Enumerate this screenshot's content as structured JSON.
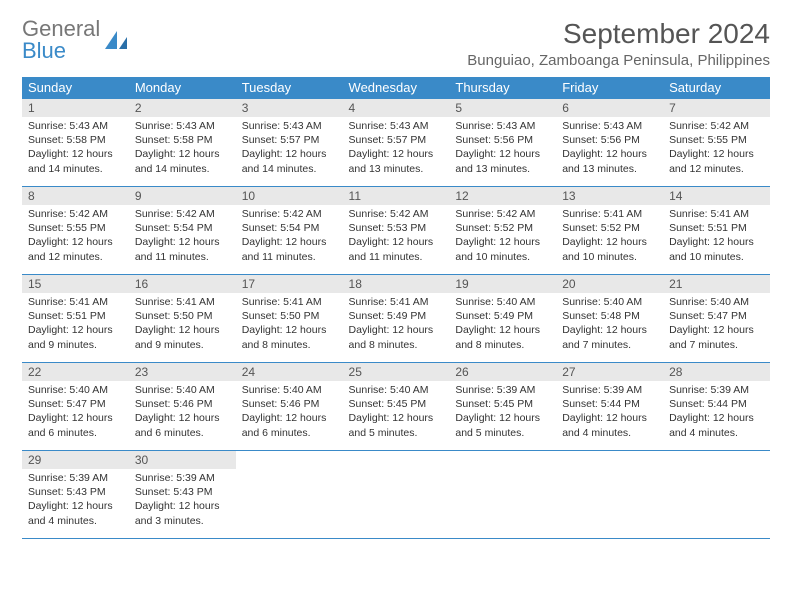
{
  "logo": {
    "word1": "General",
    "word2": "Blue"
  },
  "title": "September 2024",
  "subtitle": "Bunguiao, Zamboanga Peninsula, Philippines",
  "weekdays": [
    "Sunday",
    "Monday",
    "Tuesday",
    "Wednesday",
    "Thursday",
    "Friday",
    "Saturday"
  ],
  "header_bg": "#3a8ac8",
  "daynum_bg": "#e8e8e8",
  "border_color": "#3a8ac8",
  "days": [
    {
      "n": "1",
      "sr": "Sunrise: 5:43 AM",
      "ss": "Sunset: 5:58 PM",
      "d1": "Daylight: 12 hours",
      "d2": "and 14 minutes."
    },
    {
      "n": "2",
      "sr": "Sunrise: 5:43 AM",
      "ss": "Sunset: 5:58 PM",
      "d1": "Daylight: 12 hours",
      "d2": "and 14 minutes."
    },
    {
      "n": "3",
      "sr": "Sunrise: 5:43 AM",
      "ss": "Sunset: 5:57 PM",
      "d1": "Daylight: 12 hours",
      "d2": "and 14 minutes."
    },
    {
      "n": "4",
      "sr": "Sunrise: 5:43 AM",
      "ss": "Sunset: 5:57 PM",
      "d1": "Daylight: 12 hours",
      "d2": "and 13 minutes."
    },
    {
      "n": "5",
      "sr": "Sunrise: 5:43 AM",
      "ss": "Sunset: 5:56 PM",
      "d1": "Daylight: 12 hours",
      "d2": "and 13 minutes."
    },
    {
      "n": "6",
      "sr": "Sunrise: 5:43 AM",
      "ss": "Sunset: 5:56 PM",
      "d1": "Daylight: 12 hours",
      "d2": "and 13 minutes."
    },
    {
      "n": "7",
      "sr": "Sunrise: 5:42 AM",
      "ss": "Sunset: 5:55 PM",
      "d1": "Daylight: 12 hours",
      "d2": "and 12 minutes."
    },
    {
      "n": "8",
      "sr": "Sunrise: 5:42 AM",
      "ss": "Sunset: 5:55 PM",
      "d1": "Daylight: 12 hours",
      "d2": "and 12 minutes."
    },
    {
      "n": "9",
      "sr": "Sunrise: 5:42 AM",
      "ss": "Sunset: 5:54 PM",
      "d1": "Daylight: 12 hours",
      "d2": "and 11 minutes."
    },
    {
      "n": "10",
      "sr": "Sunrise: 5:42 AM",
      "ss": "Sunset: 5:54 PM",
      "d1": "Daylight: 12 hours",
      "d2": "and 11 minutes."
    },
    {
      "n": "11",
      "sr": "Sunrise: 5:42 AM",
      "ss": "Sunset: 5:53 PM",
      "d1": "Daylight: 12 hours",
      "d2": "and 11 minutes."
    },
    {
      "n": "12",
      "sr": "Sunrise: 5:42 AM",
      "ss": "Sunset: 5:52 PM",
      "d1": "Daylight: 12 hours",
      "d2": "and 10 minutes."
    },
    {
      "n": "13",
      "sr": "Sunrise: 5:41 AM",
      "ss": "Sunset: 5:52 PM",
      "d1": "Daylight: 12 hours",
      "d2": "and 10 minutes."
    },
    {
      "n": "14",
      "sr": "Sunrise: 5:41 AM",
      "ss": "Sunset: 5:51 PM",
      "d1": "Daylight: 12 hours",
      "d2": "and 10 minutes."
    },
    {
      "n": "15",
      "sr": "Sunrise: 5:41 AM",
      "ss": "Sunset: 5:51 PM",
      "d1": "Daylight: 12 hours",
      "d2": "and 9 minutes."
    },
    {
      "n": "16",
      "sr": "Sunrise: 5:41 AM",
      "ss": "Sunset: 5:50 PM",
      "d1": "Daylight: 12 hours",
      "d2": "and 9 minutes."
    },
    {
      "n": "17",
      "sr": "Sunrise: 5:41 AM",
      "ss": "Sunset: 5:50 PM",
      "d1": "Daylight: 12 hours",
      "d2": "and 8 minutes."
    },
    {
      "n": "18",
      "sr": "Sunrise: 5:41 AM",
      "ss": "Sunset: 5:49 PM",
      "d1": "Daylight: 12 hours",
      "d2": "and 8 minutes."
    },
    {
      "n": "19",
      "sr": "Sunrise: 5:40 AM",
      "ss": "Sunset: 5:49 PM",
      "d1": "Daylight: 12 hours",
      "d2": "and 8 minutes."
    },
    {
      "n": "20",
      "sr": "Sunrise: 5:40 AM",
      "ss": "Sunset: 5:48 PM",
      "d1": "Daylight: 12 hours",
      "d2": "and 7 minutes."
    },
    {
      "n": "21",
      "sr": "Sunrise: 5:40 AM",
      "ss": "Sunset: 5:47 PM",
      "d1": "Daylight: 12 hours",
      "d2": "and 7 minutes."
    },
    {
      "n": "22",
      "sr": "Sunrise: 5:40 AM",
      "ss": "Sunset: 5:47 PM",
      "d1": "Daylight: 12 hours",
      "d2": "and 6 minutes."
    },
    {
      "n": "23",
      "sr": "Sunrise: 5:40 AM",
      "ss": "Sunset: 5:46 PM",
      "d1": "Daylight: 12 hours",
      "d2": "and 6 minutes."
    },
    {
      "n": "24",
      "sr": "Sunrise: 5:40 AM",
      "ss": "Sunset: 5:46 PM",
      "d1": "Daylight: 12 hours",
      "d2": "and 6 minutes."
    },
    {
      "n": "25",
      "sr": "Sunrise: 5:40 AM",
      "ss": "Sunset: 5:45 PM",
      "d1": "Daylight: 12 hours",
      "d2": "and 5 minutes."
    },
    {
      "n": "26",
      "sr": "Sunrise: 5:39 AM",
      "ss": "Sunset: 5:45 PM",
      "d1": "Daylight: 12 hours",
      "d2": "and 5 minutes."
    },
    {
      "n": "27",
      "sr": "Sunrise: 5:39 AM",
      "ss": "Sunset: 5:44 PM",
      "d1": "Daylight: 12 hours",
      "d2": "and 4 minutes."
    },
    {
      "n": "28",
      "sr": "Sunrise: 5:39 AM",
      "ss": "Sunset: 5:44 PM",
      "d1": "Daylight: 12 hours",
      "d2": "and 4 minutes."
    },
    {
      "n": "29",
      "sr": "Sunrise: 5:39 AM",
      "ss": "Sunset: 5:43 PM",
      "d1": "Daylight: 12 hours",
      "d2": "and 4 minutes."
    },
    {
      "n": "30",
      "sr": "Sunrise: 5:39 AM",
      "ss": "Sunset: 5:43 PM",
      "d1": "Daylight: 12 hours",
      "d2": "and 3 minutes."
    }
  ]
}
